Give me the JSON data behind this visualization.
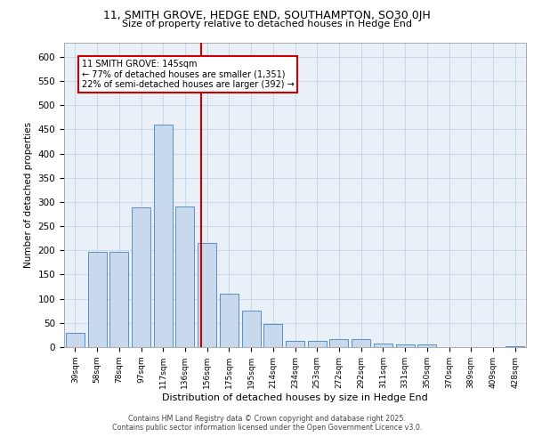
{
  "title1": "11, SMITH GROVE, HEDGE END, SOUTHAMPTON, SO30 0JH",
  "title2": "Size of property relative to detached houses in Hedge End",
  "xlabel": "Distribution of detached houses by size in Hedge End",
  "ylabel": "Number of detached properties",
  "categories": [
    "39sqm",
    "58sqm",
    "78sqm",
    "97sqm",
    "117sqm",
    "136sqm",
    "156sqm",
    "175sqm",
    "195sqm",
    "214sqm",
    "234sqm",
    "253sqm",
    "272sqm",
    "292sqm",
    "311sqm",
    "331sqm",
    "350sqm",
    "370sqm",
    "389sqm",
    "409sqm",
    "428sqm"
  ],
  "values": [
    30,
    197,
    197,
    288,
    460,
    290,
    215,
    110,
    75,
    47,
    13,
    13,
    17,
    17,
    8,
    5,
    5,
    0,
    0,
    0,
    2
  ],
  "bar_color": "#c9d9ed",
  "bar_edge_color": "#5a8fc0",
  "grid_color": "#c8d8e8",
  "background_color": "#eaf0f8",
  "vline_x": 5.74,
  "vline_color": "#cc0000",
  "annotation_text": "11 SMITH GROVE: 145sqm\n← 77% of detached houses are smaller (1,351)\n22% of semi-detached houses are larger (392) →",
  "annotation_box_color": "#ffffff",
  "annotation_box_edge_color": "#cc0000",
  "footer1": "Contains HM Land Registry data © Crown copyright and database right 2025.",
  "footer2": "Contains public sector information licensed under the Open Government Licence v3.0.",
  "ylim": [
    0,
    630
  ],
  "yticks": [
    0,
    50,
    100,
    150,
    200,
    250,
    300,
    350,
    400,
    450,
    500,
    550,
    600
  ]
}
